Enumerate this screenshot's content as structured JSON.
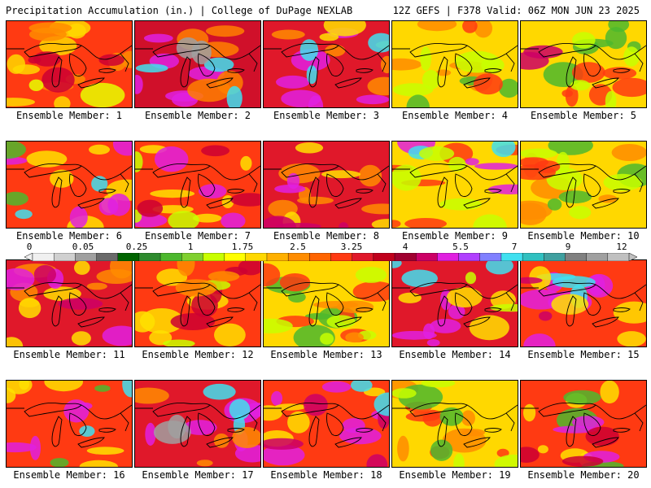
{
  "header": {
    "title": "Precipitation Accumulation (in.) | College of DuPage NEXLAB",
    "run_info": "12Z GEFS | F378 Valid: 06Z MON JUN 23 2025"
  },
  "panels": [
    {
      "label": "Ensemble Member: 1",
      "dominant": "#ff3a12",
      "blobs": [
        [
          "#ffd800",
          0.45
        ],
        [
          "#ff8c00",
          0.35
        ],
        [
          "#cc0033",
          0.25
        ],
        [
          "#e8ff00",
          0.1
        ]
      ]
    },
    {
      "label": "Ensemble Member: 2",
      "dominant": "#d0102a",
      "blobs": [
        [
          "#e020e0",
          0.35
        ],
        [
          "#ff7f00",
          0.3
        ],
        [
          "#40e0f0",
          0.2
        ],
        [
          "#a0a0a0",
          0.05
        ]
      ]
    },
    {
      "label": "Ensemble Member: 3",
      "dominant": "#e0182a",
      "blobs": [
        [
          "#e020e0",
          0.4
        ],
        [
          "#ff8c00",
          0.3
        ],
        [
          "#40e0f0",
          0.2
        ],
        [
          "#ffe000",
          0.15
        ]
      ]
    },
    {
      "label": "Ensemble Member: 4",
      "dominant": "#ffd800",
      "blobs": [
        [
          "#ff8c00",
          0.35
        ],
        [
          "#c8ff00",
          0.3
        ],
        [
          "#4db82e",
          0.2
        ],
        [
          "#ff3a12",
          0.15
        ]
      ]
    },
    {
      "label": "Ensemble Member: 5",
      "dominant": "#ffd800",
      "blobs": [
        [
          "#4db82e",
          0.35
        ],
        [
          "#ff3a12",
          0.35
        ],
        [
          "#c8ff00",
          0.25
        ],
        [
          "#cc0066",
          0.1
        ]
      ]
    },
    {
      "label": "Ensemble Member: 6",
      "dominant": "#ff3a12",
      "blobs": [
        [
          "#ffe000",
          0.35
        ],
        [
          "#e020e0",
          0.3
        ],
        [
          "#40e0f0",
          0.12
        ],
        [
          "#4db82e",
          0.12
        ]
      ]
    },
    {
      "label": "Ensemble Member: 7",
      "dominant": "#ff3a12",
      "blobs": [
        [
          "#ffe000",
          0.4
        ],
        [
          "#e020e0",
          0.25
        ],
        [
          "#c8ff00",
          0.2
        ],
        [
          "#cc0033",
          0.2
        ]
      ]
    },
    {
      "label": "Ensemble Member: 8",
      "dominant": "#e0182a",
      "blobs": [
        [
          "#ff8c00",
          0.4
        ],
        [
          "#ffe000",
          0.25
        ],
        [
          "#cc0066",
          0.2
        ],
        [
          "#e020e0",
          0.1
        ]
      ]
    },
    {
      "label": "Ensemble Member: 9",
      "dominant": "#ffd800",
      "blobs": [
        [
          "#ff3a12",
          0.35
        ],
        [
          "#e020e0",
          0.25
        ],
        [
          "#40e0f0",
          0.12
        ],
        [
          "#c8ff00",
          0.3
        ]
      ]
    },
    {
      "label": "Ensemble Member: 10",
      "dominant": "#ffd800",
      "blobs": [
        [
          "#ff8c00",
          0.35
        ],
        [
          "#4db82e",
          0.25
        ],
        [
          "#c8ff00",
          0.3
        ],
        [
          "#ff3a12",
          0.2
        ]
      ]
    },
    {
      "label": "Ensemble Member: 11",
      "dominant": "#e0182a",
      "blobs": [
        [
          "#ff8c00",
          0.35
        ],
        [
          "#ffe000",
          0.3
        ],
        [
          "#e020e0",
          0.2
        ],
        [
          "#cc0066",
          0.15
        ]
      ]
    },
    {
      "label": "Ensemble Member: 12",
      "dominant": "#ff3a12",
      "blobs": [
        [
          "#ffe000",
          0.35
        ],
        [
          "#cc0033",
          0.3
        ],
        [
          "#c8ff00",
          0.15
        ],
        [
          "#ff8c00",
          0.2
        ]
      ]
    },
    {
      "label": "Ensemble Member: 13",
      "dominant": "#ffd800",
      "blobs": [
        [
          "#4db82e",
          0.35
        ],
        [
          "#ff3a12",
          0.35
        ],
        [
          "#c8ff00",
          0.3
        ],
        [
          "#ff8c00",
          0.2
        ]
      ]
    },
    {
      "label": "Ensemble Member: 14",
      "dominant": "#e0182a",
      "blobs": [
        [
          "#e020e0",
          0.35
        ],
        [
          "#40e0f0",
          0.2
        ],
        [
          "#ffe000",
          0.25
        ],
        [
          "#c8ff00",
          0.15
        ]
      ]
    },
    {
      "label": "Ensemble Member: 15",
      "dominant": "#ff3a12",
      "blobs": [
        [
          "#e020e0",
          0.4
        ],
        [
          "#40e0f0",
          0.2
        ],
        [
          "#ffe000",
          0.25
        ],
        [
          "#cc0066",
          0.15
        ]
      ]
    },
    {
      "label": "Ensemble Member: 16",
      "dominant": "#ff3a12",
      "blobs": [
        [
          "#ffe000",
          0.35
        ],
        [
          "#e020e0",
          0.25
        ],
        [
          "#40e0f0",
          0.15
        ],
        [
          "#4db82e",
          0.12
        ]
      ]
    },
    {
      "label": "Ensemble Member: 17",
      "dominant": "#e0182a",
      "blobs": [
        [
          "#e020e0",
          0.4
        ],
        [
          "#40e0f0",
          0.2
        ],
        [
          "#ff8c00",
          0.25
        ],
        [
          "#a0a0a0",
          0.08
        ]
      ]
    },
    {
      "label": "Ensemble Member: 18",
      "dominant": "#ff3a12",
      "blobs": [
        [
          "#e020e0",
          0.35
        ],
        [
          "#ffe000",
          0.3
        ],
        [
          "#cc0066",
          0.25
        ],
        [
          "#40e0f0",
          0.1
        ]
      ]
    },
    {
      "label": "Ensemble Member: 19",
      "dominant": "#ffd800",
      "blobs": [
        [
          "#ff8c00",
          0.35
        ],
        [
          "#ff3a12",
          0.3
        ],
        [
          "#4db82e",
          0.2
        ],
        [
          "#c8ff00",
          0.25
        ]
      ]
    },
    {
      "label": "Ensemble Member: 20",
      "dominant": "#ff3a12",
      "blobs": [
        [
          "#ffe000",
          0.35
        ],
        [
          "#4db82e",
          0.2
        ],
        [
          "#e020e0",
          0.2
        ],
        [
          "#cc0033",
          0.2
        ]
      ]
    }
  ],
  "colorbar": {
    "ticks": [
      "0",
      "0.05",
      "0.25",
      "1",
      "1.75",
      "2.5",
      "3.25",
      "4",
      "5.5",
      "7",
      "9",
      "12"
    ],
    "colors": [
      "#f0f0f0",
      "#d0d0d0",
      "#a0a0a0",
      "#6a6a6a",
      "#006400",
      "#2e8b2e",
      "#4db82e",
      "#80d030",
      "#c8ff00",
      "#ffff00",
      "#ffd800",
      "#ffb000",
      "#ff8c00",
      "#ff6400",
      "#ff3a12",
      "#e0182a",
      "#c0001c",
      "#a00030",
      "#cc0066",
      "#e020e0",
      "#b040ff",
      "#8080ff",
      "#40e0f0",
      "#30c0c0",
      "#40a0a0",
      "#808080",
      "#a0a0a0",
      "#c0c0c0"
    ]
  }
}
